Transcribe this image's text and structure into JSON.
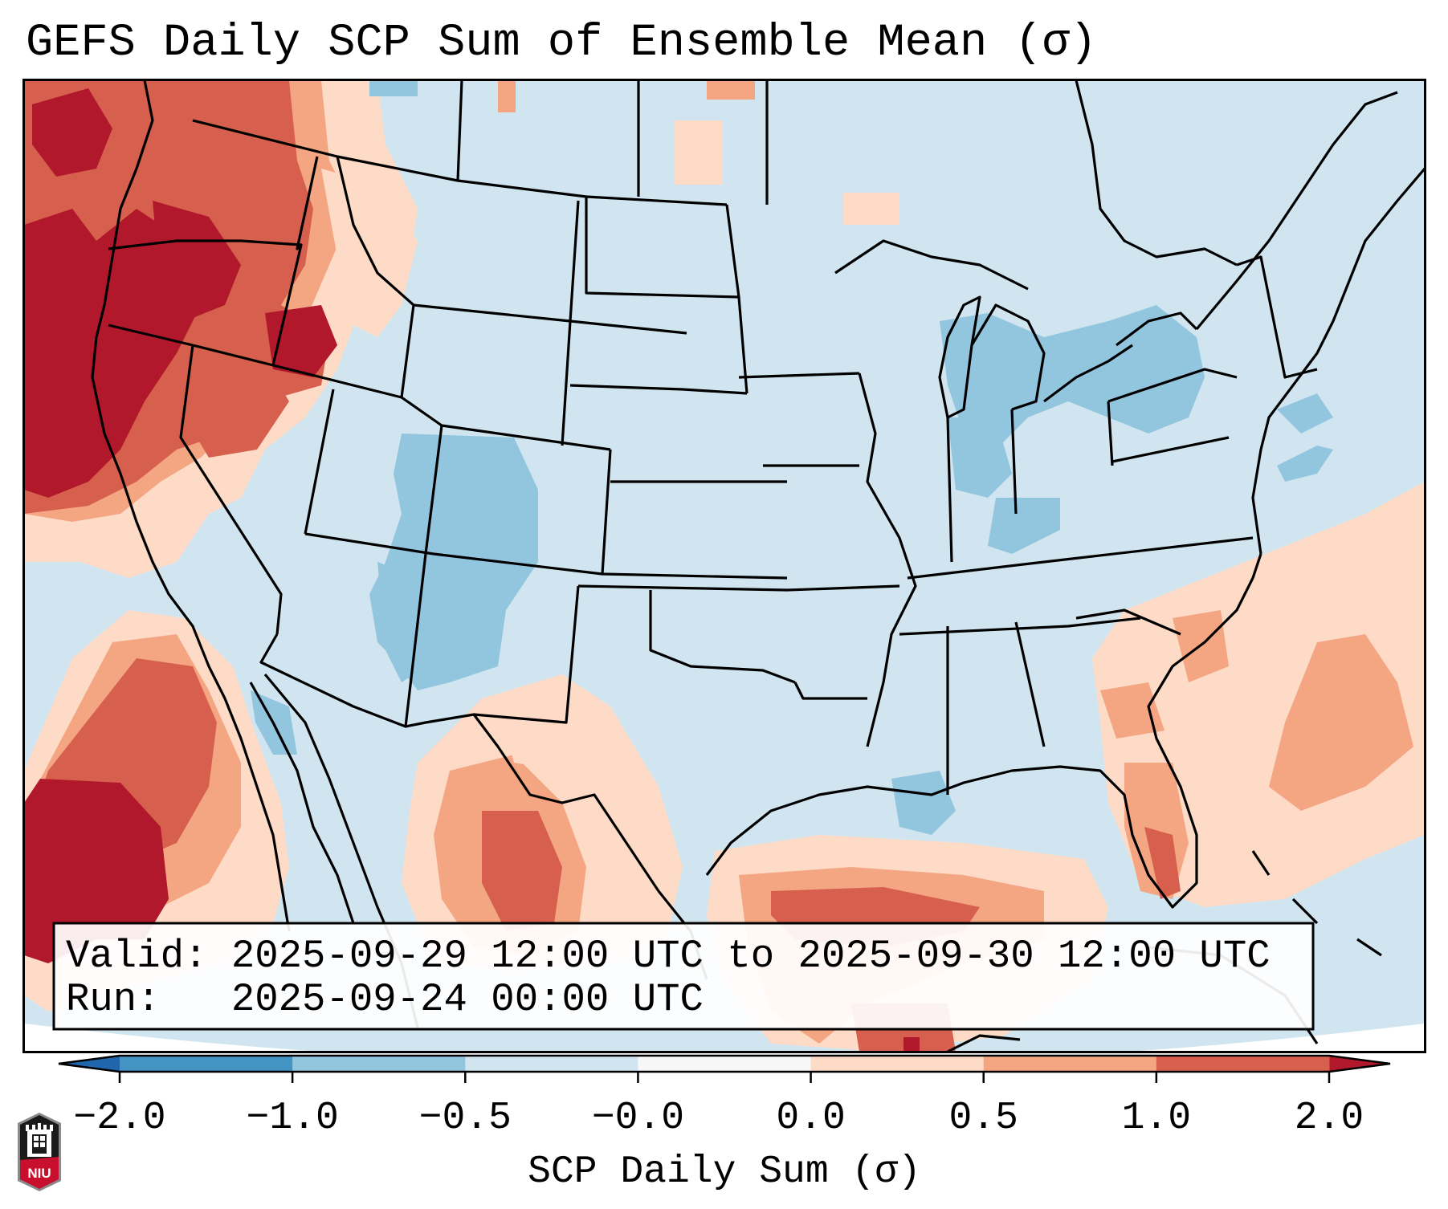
{
  "title": "GEFS Daily SCP Sum of Ensemble Mean (σ)",
  "annotation": {
    "valid_line": "Valid: 2025-09-29 12:00 UTC to 2025-09-30 12:00 UTC",
    "run_line": "Run:   2025-09-24 00:00 UTC"
  },
  "logo": {
    "icon": "niu-logo-icon",
    "text": "NIU"
  },
  "chart_data": {
    "type": "heatmap",
    "title": "GEFS Daily SCP Sum of Ensemble Mean (σ)",
    "projection": "CONUS Lambert Conformal map with state and coastline borders",
    "colorbar": {
      "label": "SCP Daily Sum (σ)",
      "orientation": "horizontal",
      "placement": "bottom",
      "extend": "both",
      "tick_labels": [
        "−2.0",
        "−1.0",
        "−0.5",
        "−0.0",
        "0.0",
        "0.5",
        "1.0",
        "2.0"
      ],
      "boundaries": [
        -2.0,
        -1.0,
        -0.5,
        -0.0,
        0.0,
        0.5,
        1.0,
        2.0
      ],
      "colors": [
        "#4393c3",
        "#92c5de",
        "#d1e5f0",
        "#f7f7f7",
        "#fddbc7",
        "#f4a582",
        "#d6604d"
      ],
      "under_color": "#2166ac",
      "over_color": "#b2182b"
    },
    "regions": [
      {
        "name": "Pacific Northwest coast & offshore (WA/OR/N. CA)",
        "value_range": [
          1.0,
          2.0
        ],
        "class": ">2.0 / 1.0–2.0"
      },
      {
        "name": "Eastern Oregon / Idaho / northern Nevada",
        "value_range": [
          0.5,
          2.0
        ],
        "class": "0.5–2.0"
      },
      {
        "name": "Western Montana / Idaho panhandle",
        "value_range": [
          0.0,
          1.0
        ],
        "class": "0.0–1.0"
      },
      {
        "name": "Pacific offshore Baja California",
        "value_range": [
          0.5,
          2.0
        ],
        "class": "0.5–>2.0"
      },
      {
        "name": "Colorado / New Mexico / Utah",
        "value_range": [
          -1.0,
          -0.5
        ],
        "class": "−1.0 to −0.5"
      },
      {
        "name": "Northern Mexico (Chihuahua/Coahuila)",
        "value_range": [
          0.0,
          1.0
        ],
        "class": "0.0–1.0"
      },
      {
        "name": "Southern Gulf of Mexico",
        "value_range": [
          0.0,
          2.0
        ],
        "class": "0.0–>2.0"
      },
      {
        "name": "Florida peninsula & western Atlantic",
        "value_range": [
          0.0,
          1.0
        ],
        "class": "0.0–1.0"
      },
      {
        "name": "Great Lakes / Indiana / Pennsylvania / New York",
        "value_range": [
          -1.0,
          -0.5
        ],
        "class": "−1.0 to −0.5"
      },
      {
        "name": "Northern Gulf coast (Louisiana)",
        "value_range": [
          -1.0,
          -0.5
        ],
        "class": "−1.0 to −0.5"
      },
      {
        "name": "Remainder of CONUS (Plains, Midwest, Southeast)",
        "value_range": [
          -0.5,
          -0.0
        ],
        "class": "−0.5 to −0.0"
      }
    ]
  }
}
